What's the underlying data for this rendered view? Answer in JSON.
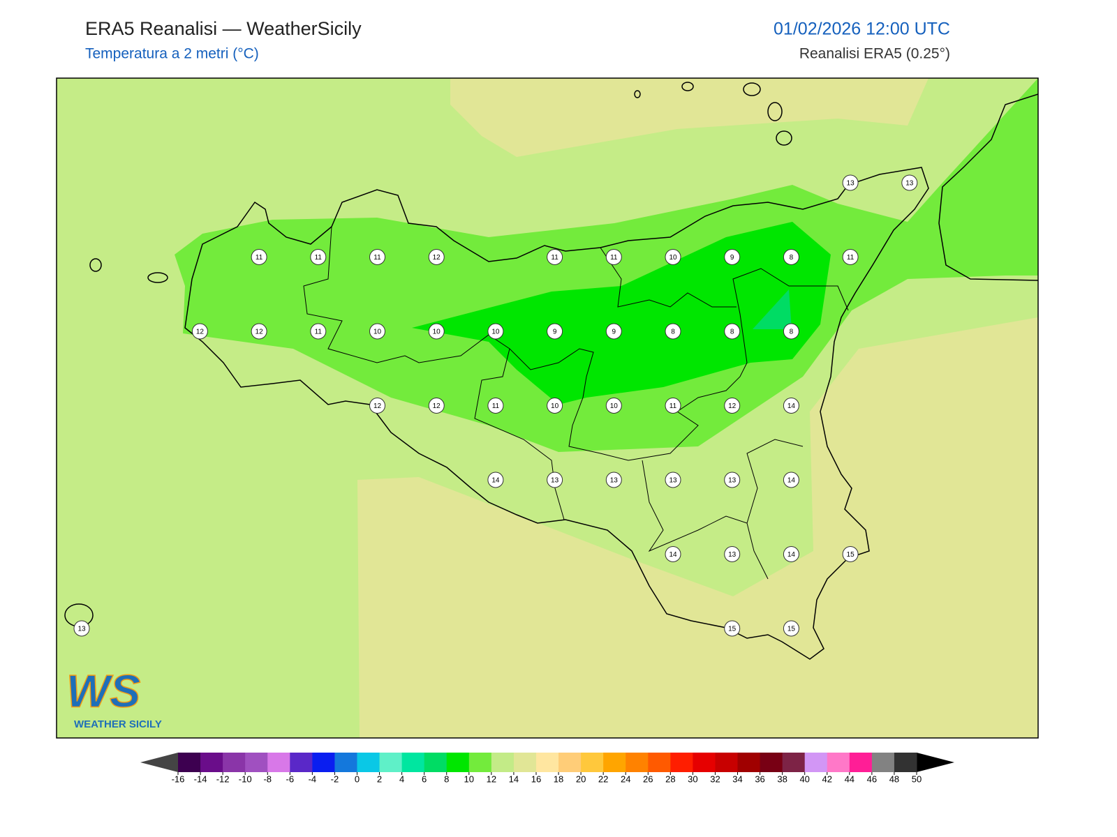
{
  "header": {
    "title": "ERA5 Reanalisi — WeatherSicily",
    "subtitle": "Temperatura a 2 metri (°C)",
    "datetime": "01/02/2026 12:00 UTC",
    "source": "Reanalisi ERA5 (0.25°)"
  },
  "map": {
    "labels": [
      [
        null,
        null,
        null,
        null,
        null,
        null,
        null,
        null,
        null,
        null,
        null,
        null,
        null,
        13,
        13
      ],
      [
        null,
        null,
        null,
        11,
        11,
        11,
        12,
        null,
        11,
        11,
        10,
        9,
        8,
        11,
        null
      ],
      [
        null,
        null,
        12,
        12,
        11,
        10,
        10,
        10,
        9,
        9,
        8,
        8,
        8,
        null,
        null
      ],
      [
        null,
        null,
        null,
        null,
        null,
        12,
        12,
        11,
        10,
        10,
        11,
        12,
        14,
        null,
        null
      ],
      [
        null,
        null,
        null,
        null,
        null,
        null,
        null,
        14,
        13,
        13,
        13,
        13,
        14,
        null,
        null
      ],
      [
        null,
        null,
        null,
        null,
        null,
        null,
        null,
        null,
        null,
        null,
        14,
        13,
        14,
        15,
        null
      ],
      [
        13,
        null,
        null,
        null,
        null,
        null,
        null,
        null,
        null,
        null,
        null,
        15,
        15,
        null,
        null
      ]
    ]
  },
  "logo": {
    "mark": "WS",
    "name": "WEATHER SICILY"
  },
  "colorbar": {
    "ticks": [
      -16,
      -14,
      -12,
      -10,
      -8,
      -6,
      -4,
      -2,
      0,
      2,
      4,
      6,
      8,
      10,
      12,
      14,
      16,
      18,
      20,
      22,
      24,
      26,
      28,
      30,
      32,
      34,
      36,
      38,
      40,
      42,
      44,
      46,
      48,
      50
    ],
    "colors": [
      "#3d0050",
      "#6a0d8a",
      "#8a35a8",
      "#a050c0",
      "#d878e8",
      "#5a28c8",
      "#0a1ef0",
      "#1478dc",
      "#0ac8e6",
      "#5ff0c8",
      "#00e6a0",
      "#00dc64",
      "#00e600",
      "#73eb3c",
      "#c3eb87",
      "#e1e696",
      "#ffe6a0",
      "#ffcd78",
      "#ffc83c",
      "#ffa500",
      "#ff8200",
      "#ff5a00",
      "#ff1e00",
      "#e60000",
      "#c80000",
      "#a00000",
      "#780014",
      "#7d2346",
      "#d296f5",
      "#ff78c8",
      "#ff1e96",
      "#828282",
      "#323232"
    ],
    "under_color": "#444444",
    "over_color": "#000000"
  }
}
